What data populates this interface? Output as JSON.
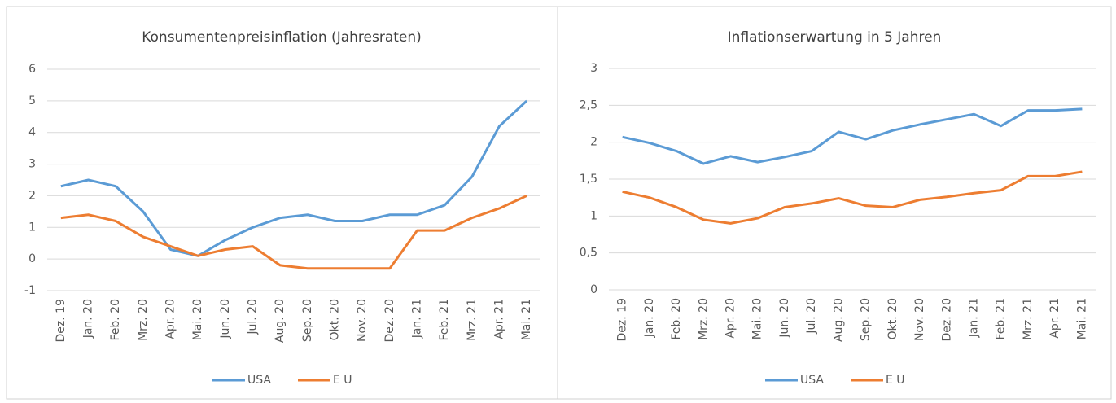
{
  "chart_data": [
    {
      "type": "line",
      "title": "Konsumentenpreisinflation (Jahresraten)",
      "categories": [
        "Dez. 19",
        "Jan. 20",
        "Feb. 20",
        "Mrz. 20",
        "Apr. 20",
        "Mai. 20",
        "Jun. 20",
        "Jul. 20",
        "Aug. 20",
        "Sep. 20",
        "Okt. 20",
        "Nov. 20",
        "Dez. 20",
        "Jan. 21",
        "Feb. 21",
        "Mrz. 21",
        "Apr. 21",
        "Mai. 21"
      ],
      "series": [
        {
          "name": "USA",
          "color": "#5b9bd5",
          "values": [
            2.3,
            2.5,
            2.3,
            1.5,
            0.3,
            0.1,
            0.6,
            1.0,
            1.3,
            1.4,
            1.2,
            1.2,
            1.4,
            1.4,
            1.7,
            2.6,
            4.2,
            5.0
          ]
        },
        {
          "name": "E U",
          "color": "#ed7d31",
          "values": [
            1.3,
            1.4,
            1.2,
            0.7,
            0.4,
            0.1,
            0.3,
            0.4,
            -0.2,
            -0.3,
            -0.3,
            -0.3,
            -0.3,
            0.9,
            0.9,
            1.3,
            1.6,
            2.0
          ]
        }
      ],
      "ylim": [
        -1,
        6
      ],
      "yticks": [
        -1,
        0,
        1,
        2,
        3,
        4,
        5,
        6
      ],
      "grid": true,
      "legend": "bottom"
    },
    {
      "type": "line",
      "title": "Inflationserwartung in 5 Jahren",
      "categories": [
        "Dez. 19",
        "Jan. 20",
        "Feb. 20",
        "Mrz. 20",
        "Apr. 20",
        "Mai. 20",
        "Jun. 20",
        "Jul. 20",
        "Aug. 20",
        "Sep. 20",
        "Okt. 20",
        "Nov. 20",
        "Dez. 20",
        "Jan. 21",
        "Feb. 21",
        "Mrz. 21",
        "Apr. 21",
        "Mai. 21"
      ],
      "series": [
        {
          "name": "USA",
          "color": "#5b9bd5",
          "values": [
            2.07,
            1.99,
            1.88,
            1.71,
            1.81,
            1.73,
            1.8,
            1.88,
            2.14,
            2.04,
            2.16,
            2.24,
            2.31,
            2.38,
            2.22,
            2.43,
            2.43,
            2.45
          ]
        },
        {
          "name": "E U",
          "color": "#ed7d31",
          "values": [
            1.33,
            1.25,
            1.12,
            0.95,
            0.9,
            0.97,
            1.12,
            1.17,
            1.24,
            1.14,
            1.12,
            1.22,
            1.26,
            1.31,
            1.35,
            1.54,
            1.54,
            1.6
          ]
        }
      ],
      "ylim": [
        0,
        3
      ],
      "yticks": [
        0,
        {
          "value": 0.5,
          "label": "0,5"
        },
        1,
        {
          "value": 1.5,
          "label": "1,5"
        },
        2,
        {
          "value": 2.5,
          "label": "2,5"
        },
        3
      ],
      "grid": true,
      "legend": "bottom"
    }
  ]
}
